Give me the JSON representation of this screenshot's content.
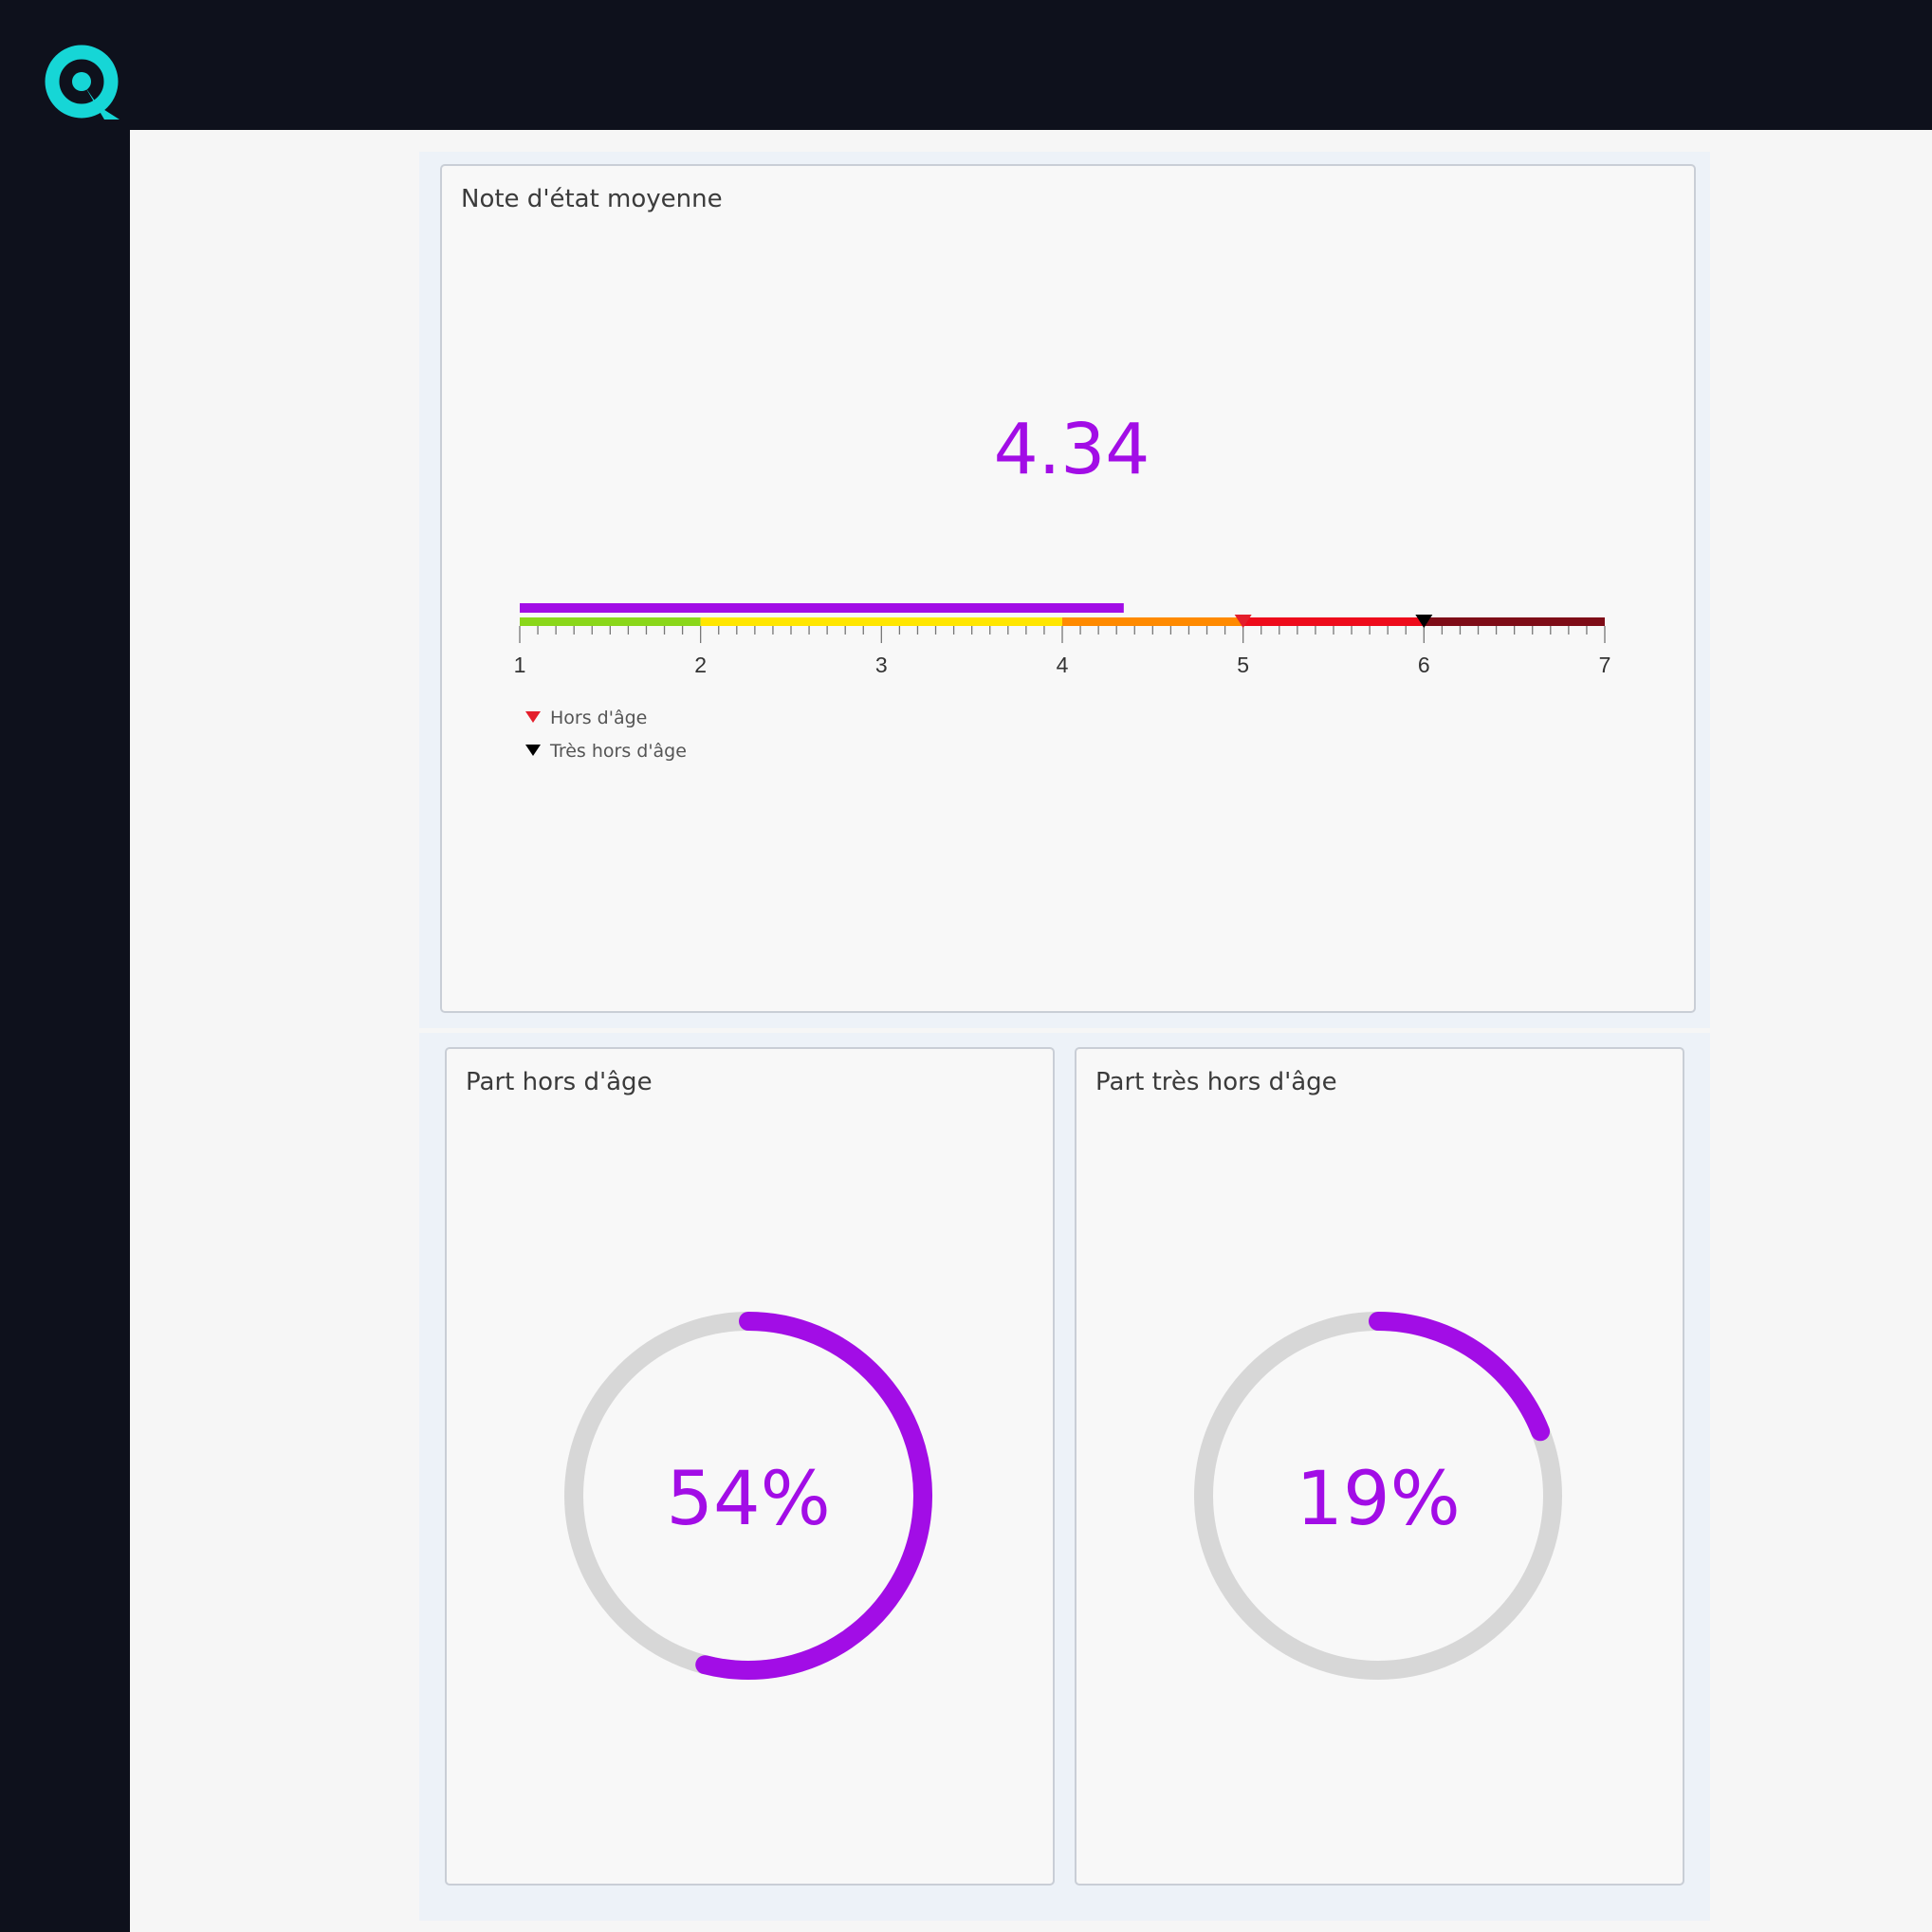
{
  "app": {
    "logo_icon": "q-logo-icon",
    "accent": "#16d6d6"
  },
  "note_card": {
    "title": "Note d'état moyenne",
    "value_label": "4.34",
    "legend": [
      {
        "label": "Hors d'âge",
        "color": "#e41e2b",
        "icon": "triangle-down-icon"
      },
      {
        "label": "Très hors d'âge",
        "color": "#000000",
        "icon": "triangle-down-icon"
      }
    ]
  },
  "hors_card": {
    "title": "Part hors d'âge",
    "value_label": "54%"
  },
  "tres_card": {
    "title": "Part très hors d'âge",
    "value_label": "19%"
  },
  "chart_data": [
    {
      "type": "bullet",
      "title": "Note d'état moyenne",
      "value": 4.34,
      "xlim": [
        1,
        7
      ],
      "ticks": [
        "1",
        "2",
        "3",
        "4",
        "5",
        "6",
        "7"
      ],
      "bar_color": "#a20de6",
      "ranges": [
        {
          "from": 1,
          "to": 2,
          "color": "#8ad71a"
        },
        {
          "from": 2,
          "to": 4,
          "color": "#ffe600"
        },
        {
          "from": 4,
          "to": 5,
          "color": "#ff8a00"
        },
        {
          "from": 5,
          "to": 6,
          "color": "#ee0b1b"
        },
        {
          "from": 6,
          "to": 7,
          "color": "#7e0c17"
        }
      ],
      "markers": [
        {
          "name": "Hors d'âge",
          "value": 5,
          "color": "#e41e2b"
        },
        {
          "name": "Très hors d'âge",
          "value": 6,
          "color": "#000000"
        }
      ]
    },
    {
      "type": "donut",
      "title": "Part hors d'âge",
      "value": 0.54,
      "color": "#a20de6",
      "track_color": "#d7d7d7"
    },
    {
      "type": "donut",
      "title": "Part très hors d'âge",
      "value": 0.19,
      "color": "#a20de6",
      "track_color": "#d7d7d7"
    }
  ]
}
